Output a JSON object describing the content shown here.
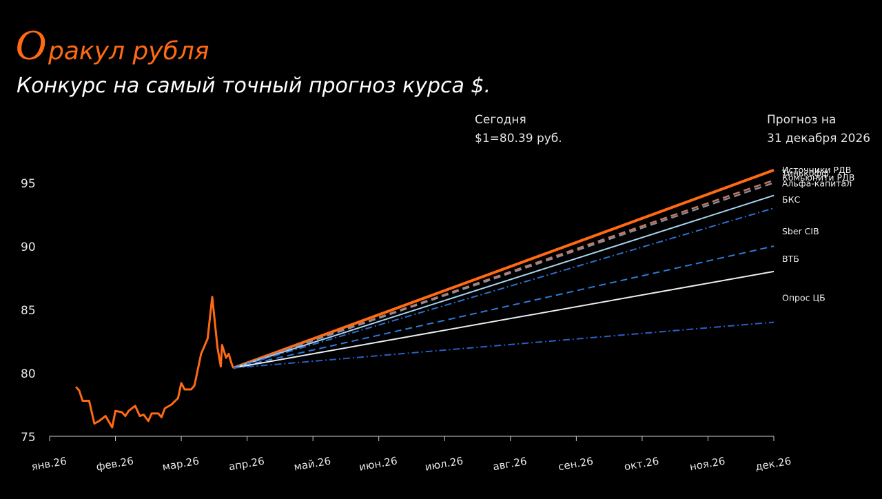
{
  "chart_data": {
    "type": "line",
    "title_initial": "О",
    "title_rest": "ракул рубля",
    "subtitle": "Конкурс на самый точный прогноз курса $.",
    "annotations": [
      {
        "lines": [
          "Сегодня",
          "$1=80.39 руб."
        ]
      },
      {
        "lines": [
          "Прогноз на",
          "31 декабря 2026"
        ]
      }
    ],
    "xlim": [
      0,
      11
    ],
    "xticks": [
      {
        "value": 0,
        "label": "янв.26"
      },
      {
        "value": 1,
        "label": "фев.26"
      },
      {
        "value": 2,
        "label": "мар.26"
      },
      {
        "value": 3,
        "label": "апр.26"
      },
      {
        "value": 4,
        "label": "май.26"
      },
      {
        "value": 5,
        "label": "июн.26"
      },
      {
        "value": 6,
        "label": "июл.26"
      },
      {
        "value": 7,
        "label": "авг.26"
      },
      {
        "value": 8,
        "label": "сен.26"
      },
      {
        "value": 9,
        "label": "окт.26"
      },
      {
        "value": 10,
        "label": "ноя.26"
      },
      {
        "value": 11,
        "label": "дек.26"
      }
    ],
    "ylim": [
      75,
      98
    ],
    "yticks": [
      75,
      80,
      85,
      90,
      95
    ],
    "series": [
      {
        "color": "#ff6a13",
        "style": "solid",
        "x": [
          0.4,
          0.45,
          0.5,
          0.6,
          0.68,
          0.75,
          0.85,
          0.95,
          1.0,
          1.1,
          1.15,
          1.2,
          1.25,
          1.3,
          1.37,
          1.43,
          1.5,
          1.55,
          1.65,
          1.7,
          1.75,
          1.85,
          1.95,
          2.0,
          2.05,
          2.15,
          2.2,
          2.3,
          2.4,
          2.47,
          2.55,
          2.6,
          2.62,
          2.68,
          2.72,
          2.76,
          2.79
        ],
        "values": [
          78.9,
          78.6,
          77.8,
          77.8,
          76.0,
          76.2,
          76.6,
          75.7,
          77.0,
          76.9,
          76.6,
          77.0,
          77.2,
          77.4,
          76.6,
          76.7,
          76.2,
          76.8,
          76.8,
          76.5,
          77.2,
          77.5,
          78.0,
          79.2,
          78.7,
          78.7,
          79.0,
          81.5,
          82.7,
          86.0,
          82.0,
          80.5,
          82.2,
          81.2,
          81.5,
          80.8,
          80.39
        ]
      },
      {
        "name": "Источники РДВ",
        "color": "#ff6a13",
        "style": "solid",
        "x": [
          2.79,
          11
        ],
        "values": [
          80.39,
          96
        ]
      },
      {
        "name": "Тинькофф",
        "color": "#c9785a",
        "style": "dashed",
        "x": [
          2.79,
          11
        ],
        "values": [
          80.39,
          95.2
        ]
      },
      {
        "name": "Комьюнити РДВ",
        "color": "#8a8a9a",
        "style": "dashed",
        "x": [
          2.79,
          11
        ],
        "values": [
          80.39,
          95
        ]
      },
      {
        "name": "Альфа-капитал",
        "color": "#a8d4f0",
        "style": "solid",
        "x": [
          2.79,
          11
        ],
        "values": [
          80.39,
          94
        ]
      },
      {
        "name": "БКС",
        "color": "#2f6fd0",
        "style": "dashdot",
        "x": [
          2.79,
          11
        ],
        "values": [
          80.39,
          93
        ]
      },
      {
        "name": "Sber CIB",
        "color": "#2f7ad6",
        "style": "dashed",
        "x": [
          2.79,
          11
        ],
        "values": [
          80.39,
          90
        ]
      },
      {
        "name": "ВТБ",
        "color": "#e8eef4",
        "style": "solid",
        "x": [
          2.79,
          11
        ],
        "values": [
          80.39,
          88
        ]
      },
      {
        "name": "Опрос ЦБ",
        "color": "#2b5fc8",
        "style": "dashdot",
        "x": [
          2.79,
          11
        ],
        "values": [
          80.39,
          84
        ]
      }
    ]
  }
}
